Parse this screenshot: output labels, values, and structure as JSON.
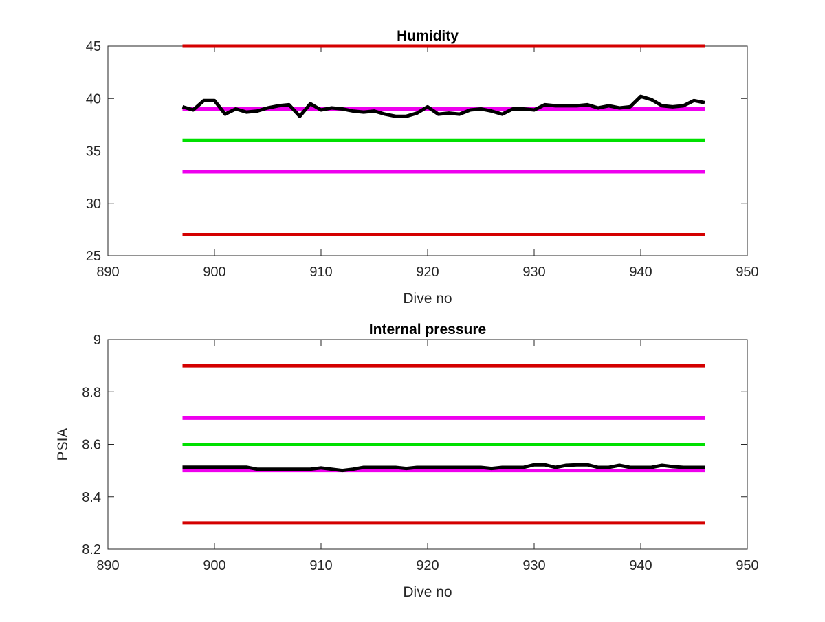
{
  "chart_data": [
    {
      "type": "line",
      "title": "Humidity",
      "xlabel": "Dive no",
      "ylabel": "",
      "xlim": [
        890,
        950
      ],
      "ylim": [
        25,
        45
      ],
      "xticks": [
        "890",
        "900",
        "910",
        "920",
        "930",
        "940",
        "950"
      ],
      "yticks": [
        "25",
        "30",
        "35",
        "40",
        "45"
      ],
      "xtick_values": [
        890,
        900,
        910,
        920,
        930,
        940,
        950
      ],
      "ytick_values": [
        25,
        30,
        35,
        40,
        45
      ],
      "grid": false,
      "series": [
        {
          "color": "#d40000",
          "width": 5,
          "x": [
            897,
            946
          ],
          "values": [
            45,
            45
          ]
        },
        {
          "color": "#ee00ee",
          "width": 5,
          "x": [
            897,
            946
          ],
          "values": [
            39,
            39
          ]
        },
        {
          "color": "#00e000",
          "width": 5,
          "x": [
            897,
            946
          ],
          "values": [
            36,
            36
          ]
        },
        {
          "color": "#ee00ee",
          "width": 5,
          "x": [
            897,
            946
          ],
          "values": [
            33,
            33
          ]
        },
        {
          "color": "#d40000",
          "width": 5,
          "x": [
            897,
            946
          ],
          "values": [
            27,
            27
          ]
        },
        {
          "color": "#000000",
          "width": 5,
          "x": [
            897,
            898,
            899,
            900,
            901,
            902,
            903,
            904,
            905,
            906,
            907,
            908,
            909,
            910,
            911,
            912,
            913,
            914,
            915,
            916,
            917,
            918,
            919,
            920,
            921,
            922,
            923,
            924,
            925,
            926,
            927,
            928,
            929,
            930,
            931,
            932,
            933,
            934,
            935,
            936,
            937,
            938,
            939,
            940,
            941,
            942,
            943,
            944,
            945,
            946
          ],
          "values": [
            39.2,
            38.9,
            39.8,
            39.8,
            38.5,
            39.0,
            38.7,
            38.8,
            39.1,
            39.3,
            39.4,
            38.3,
            39.5,
            38.9,
            39.1,
            39.0,
            38.8,
            38.7,
            38.8,
            38.5,
            38.3,
            38.3,
            38.6,
            39.2,
            38.5,
            38.6,
            38.5,
            38.9,
            39.0,
            38.8,
            38.5,
            39.0,
            39.0,
            38.9,
            39.4,
            39.3,
            39.3,
            39.3,
            39.4,
            39.1,
            39.3,
            39.1,
            39.2,
            40.2,
            39.9,
            39.3,
            39.2,
            39.3,
            39.8,
            39.6
          ]
        }
      ]
    },
    {
      "type": "line",
      "title": "Internal pressure",
      "xlabel": "Dive no",
      "ylabel": "PSIA",
      "xlim": [
        890,
        950
      ],
      "ylim": [
        8.2,
        9
      ],
      "xticks": [
        "890",
        "900",
        "910",
        "920",
        "930",
        "940",
        "950"
      ],
      "yticks": [
        "8.2",
        "8.4",
        "8.6",
        "8.8",
        "9"
      ],
      "xtick_values": [
        890,
        900,
        910,
        920,
        930,
        940,
        950
      ],
      "ytick_values": [
        8.2,
        8.4,
        8.6,
        8.8,
        9.0
      ],
      "grid": false,
      "series": [
        {
          "color": "#d40000",
          "width": 5,
          "x": [
            897,
            946
          ],
          "values": [
            8.9,
            8.9
          ]
        },
        {
          "color": "#ee00ee",
          "width": 5,
          "x": [
            897,
            946
          ],
          "values": [
            8.7,
            8.7
          ]
        },
        {
          "color": "#00e000",
          "width": 5,
          "x": [
            897,
            946
          ],
          "values": [
            8.6,
            8.6
          ]
        },
        {
          "color": "#ee00ee",
          "width": 5,
          "x": [
            897,
            946
          ],
          "values": [
            8.5,
            8.5
          ]
        },
        {
          "color": "#d40000",
          "width": 5,
          "x": [
            897,
            946
          ],
          "values": [
            8.3,
            8.3
          ]
        },
        {
          "color": "#000000",
          "width": 5,
          "x": [
            897,
            898,
            899,
            900,
            901,
            902,
            903,
            904,
            905,
            906,
            907,
            908,
            909,
            910,
            911,
            912,
            913,
            914,
            915,
            916,
            917,
            918,
            919,
            920,
            921,
            922,
            923,
            924,
            925,
            926,
            927,
            928,
            929,
            930,
            931,
            932,
            933,
            934,
            935,
            936,
            937,
            938,
            939,
            940,
            941,
            942,
            943,
            944,
            945,
            946
          ],
          "values": [
            8.513,
            8.513,
            8.513,
            8.513,
            8.513,
            8.513,
            8.513,
            8.505,
            8.505,
            8.505,
            8.505,
            8.505,
            8.505,
            8.51,
            8.505,
            8.5,
            8.505,
            8.512,
            8.512,
            8.512,
            8.512,
            8.508,
            8.512,
            8.512,
            8.512,
            8.512,
            8.512,
            8.512,
            8.512,
            8.508,
            8.512,
            8.512,
            8.512,
            8.522,
            8.522,
            8.512,
            8.52,
            8.522,
            8.522,
            8.512,
            8.512,
            8.52,
            8.512,
            8.512,
            8.512,
            8.52,
            8.515,
            8.512,
            8.512,
            8.512
          ]
        }
      ]
    }
  ]
}
